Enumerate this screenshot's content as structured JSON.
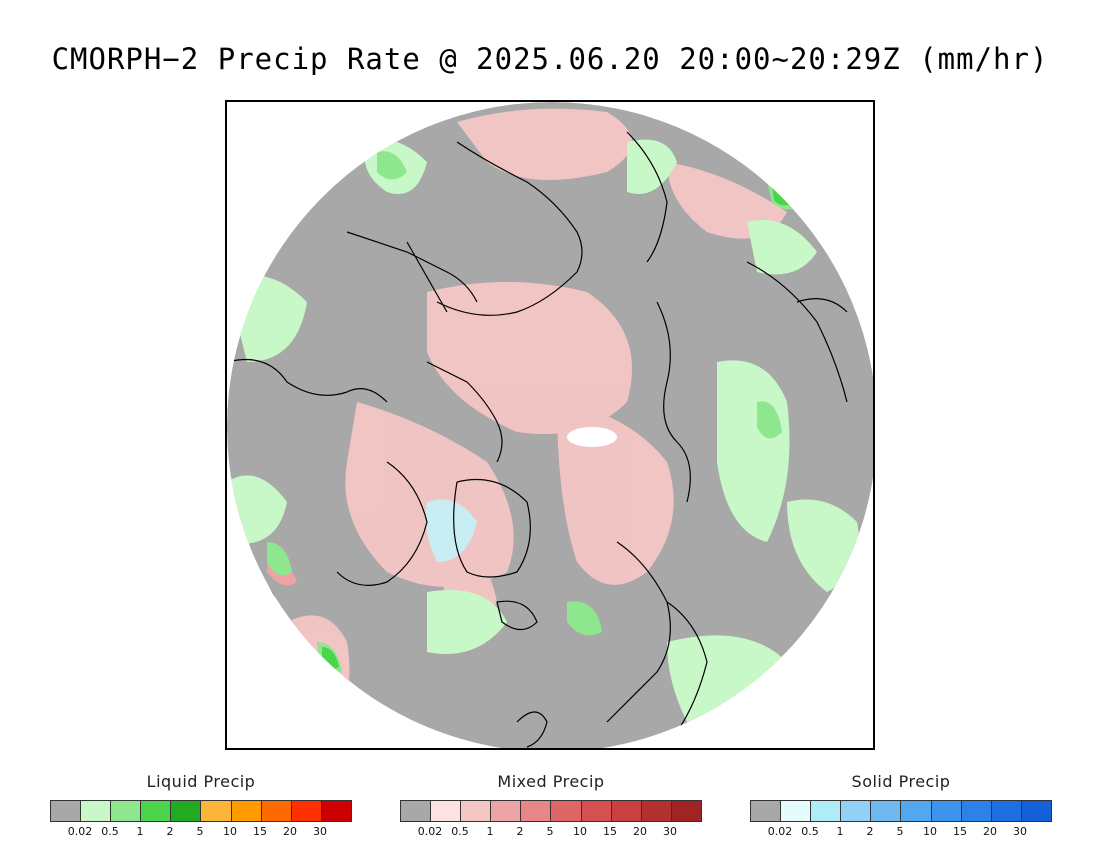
{
  "title": "CMORPH−2 Precip Rate @ 2025.06.20 20:00~20:29Z (mm/hr)",
  "map": {
    "projection": "north-polar-stereographic",
    "colors": {
      "no_precip": "#a8a8a8",
      "coastline": "#000000",
      "liquid_light": "#c8f7c8",
      "liquid_mid": "#8ee68e",
      "liquid_strong": "#4cd44c",
      "mixed_light": "#f5c6c6",
      "mixed_mid": "#eea4a4",
      "solid_light": "#c8eef4"
    }
  },
  "legends": [
    {
      "title": "Liquid Precip",
      "colors": [
        "#a8a8a8",
        "#c8f7c8",
        "#8ee68e",
        "#4cd44c",
        "#22aa22",
        "#fbb63a",
        "#ff9a00",
        "#ff6a00",
        "#ff3000",
        "#cc0000"
      ],
      "ticks": [
        "0.02",
        "0.5",
        "1",
        "2",
        "5",
        "10",
        "15",
        "20",
        "30"
      ]
    },
    {
      "title": "Mixed Precip",
      "colors": [
        "#a8a8a8",
        "#fde2e2",
        "#f5c6c6",
        "#eea4a4",
        "#e88585",
        "#df6666",
        "#d55050",
        "#c84040",
        "#b33030",
        "#a02424"
      ],
      "ticks": [
        "0.02",
        "0.5",
        "1",
        "2",
        "5",
        "10",
        "15",
        "20",
        "30"
      ]
    },
    {
      "title": "Solid Precip",
      "colors": [
        "#a8a8a8",
        "#e4fcfc",
        "#b0ecf8",
        "#92d0f8",
        "#70b8f0",
        "#52a8f0",
        "#3c94ec",
        "#2c82e8",
        "#1e70e0",
        "#1460d8"
      ],
      "ticks": [
        "0.02",
        "0.5",
        "1",
        "2",
        "5",
        "10",
        "15",
        "20",
        "30"
      ]
    }
  ]
}
